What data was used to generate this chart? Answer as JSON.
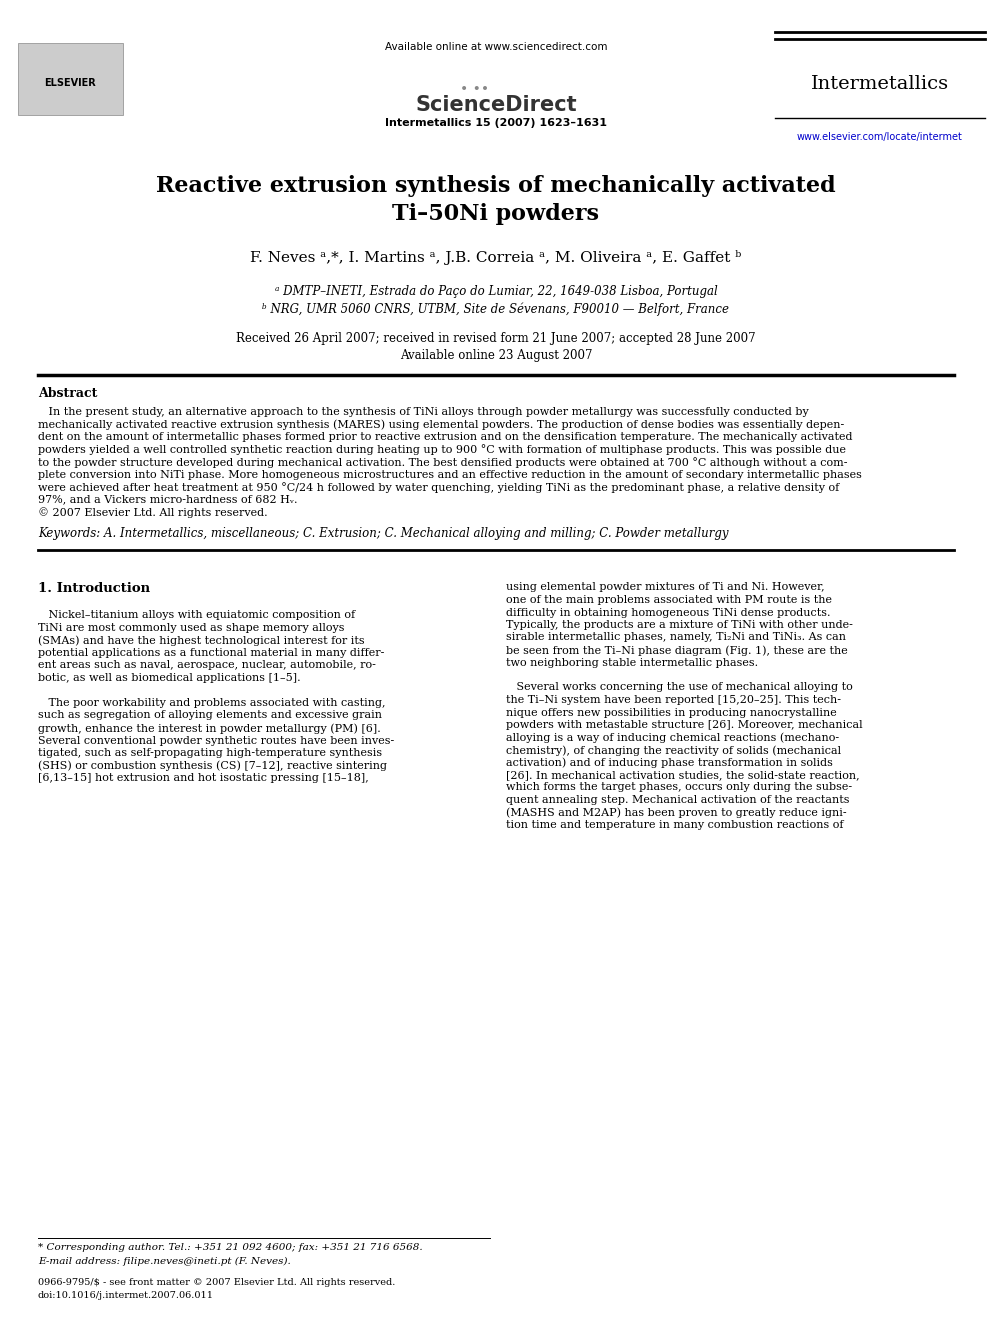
{
  "bg_color": "#ffffff",
  "header_available_text": "Available online at www.sciencedirect.com",
  "header_journal_name": "Intermetallics",
  "header_journal_issue": "Intermetallics 15 (2007) 1623–1631",
  "header_url": "www.elsevier.com/locate/intermet",
  "title_line1": "Reactive extrusion synthesis of mechanically activated",
  "title_line2": "Ti–50Ni powders",
  "authors_line": "F. Neves ᵃ,*, I. Martins ᵃ, J.B. Correia ᵃ, M. Oliveira ᵃ, E. Gaffet ᵇ",
  "affil_a": "ᵃ DMTP–INETI, Estrada do Paço do Lumiar, 22, 1649-038 Lisboa, Portugal",
  "affil_b": "ᵇ NRG, UMR 5060 CNRS, UTBM, Site de Sévenans, F90010 — Belfort, France",
  "received_text": "Received 26 April 2007; received in revised form 21 June 2007; accepted 28 June 2007",
  "available_online": "Available online 23 August 2007",
  "abstract_title": "Abstract",
  "abstract_lines": [
    "   In the present study, an alternative approach to the synthesis of TiNi alloys through powder metallurgy was successfully conducted by",
    "mechanically activated reactive extrusion synthesis (MARES) using elemental powders. The production of dense bodies was essentially depen-",
    "dent on the amount of intermetallic phases formed prior to reactive extrusion and on the densification temperature. The mechanically activated",
    "powders yielded a well controlled synthetic reaction during heating up to 900 °C with formation of multiphase products. This was possible due",
    "to the powder structure developed during mechanical activation. The best densified products were obtained at 700 °C although without a com-",
    "plete conversion into NiTi phase. More homogeneous microstructures and an effective reduction in the amount of secondary intermetallic phases",
    "were achieved after heat treatment at 950 °C/24 h followed by water quenching, yielding TiNi as the predominant phase, a relative density of",
    "97%, and a Vickers micro-hardness of 682 Hᵥ.",
    "© 2007 Elsevier Ltd. All rights reserved."
  ],
  "keywords_text": "Keywords: A. Intermetallics, miscellaneous; C. Extrusion; C. Mechanical alloying and milling; C. Powder metallurgy",
  "section1_title": "1. Introduction",
  "intro_col1_lines": [
    "   Nickel–titanium alloys with equiatomic composition of",
    "TiNi are most commonly used as shape memory alloys",
    "(SMAs) and have the highest technological interest for its",
    "potential applications as a functional material in many differ-",
    "ent areas such as naval, aerospace, nuclear, automobile, ro-",
    "botic, as well as biomedical applications [1–5].",
    "",
    "   The poor workability and problems associated with casting,",
    "such as segregation of alloying elements and excessive grain",
    "growth, enhance the interest in powder metallurgy (PM) [6].",
    "Several conventional powder synthetic routes have been inves-",
    "tigated, such as self-propagating high-temperature synthesis",
    "(SHS) or combustion synthesis (CS) [7–12], reactive sintering",
    "[6,13–15] hot extrusion and hot isostatic pressing [15–18],"
  ],
  "intro_col2_lines": [
    "using elemental powder mixtures of Ti and Ni. However,",
    "one of the main problems associated with PM route is the",
    "difficulty in obtaining homogeneous TiNi dense products.",
    "Typically, the products are a mixture of TiNi with other unde-",
    "sirable intermetallic phases, namely, Ti₂Ni and TiNi₃. As can",
    "be seen from the Ti–Ni phase diagram (Fig. 1), these are the",
    "two neighboring stable intermetallic phases.",
    "",
    "   Several works concerning the use of mechanical alloying to",
    "the Ti–Ni system have been reported [15,20–25]. This tech-",
    "nique offers new possibilities in producing nanocrystalline",
    "powders with metastable structure [26]. Moreover, mechanical",
    "alloying is a way of inducing chemical reactions (mechano-",
    "chemistry), of changing the reactivity of solids (mechanical",
    "activation) and of inducing phase transformation in solids",
    "[26]. In mechanical activation studies, the solid-state reaction,",
    "which forms the target phases, occurs only during the subse-",
    "quent annealing step. Mechanical activation of the reactants",
    "(MASHS and M2AP) has been proven to greatly reduce igni-",
    "tion time and temperature in many combustion reactions of"
  ],
  "footer_text1": "* Corresponding author. Tel.: +351 21 092 4600; fax: +351 21 716 6568.",
  "footer_text2": "E-mail address: filipe.neves@ineti.pt (F. Neves).",
  "footer_issn": "0966-9795/$ - see front matter © 2007 Elsevier Ltd. All rights reserved.",
  "footer_doi": "doi:10.1016/j.intermet.2007.06.011"
}
